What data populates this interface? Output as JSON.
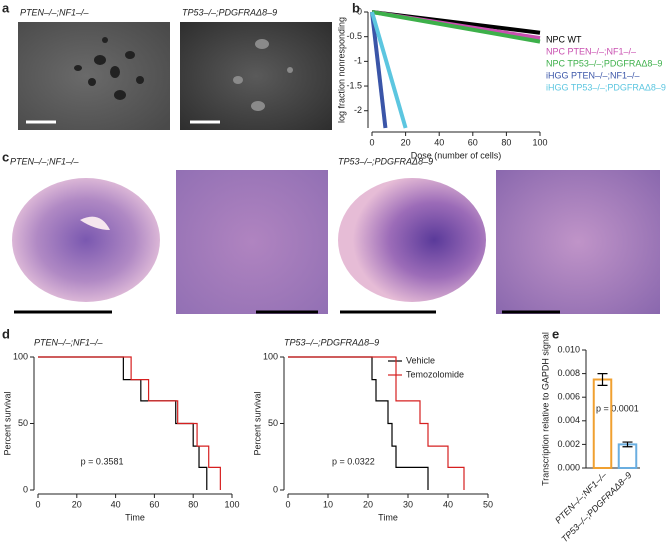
{
  "panel_labels": [
    "a",
    "b",
    "c",
    "d",
    "e"
  ],
  "panel_a": {
    "labels": [
      "PTEN–/–;NF1–/–",
      "TP53–/–;PDGFRAΔ8–9"
    ]
  },
  "panel_c": {
    "labels": [
      "PTEN–/–;NF1–/–",
      "TP53–/–;PDGFRAΔ8–9"
    ]
  },
  "chart_data": [
    {
      "type": "line",
      "xlabel": "Dose (number of cells)",
      "ylabel": "log fraction nonresponding",
      "xlim": [
        0,
        100
      ],
      "ylim": [
        -2.35,
        0
      ],
      "xticks": [
        0,
        20,
        40,
        60,
        80,
        100
      ],
      "yticks": [
        0,
        -0.5,
        -1,
        -1.5,
        -2
      ],
      "series": [
        {
          "name": "NPC WT",
          "color": "#000000",
          "x": [
            0,
            100
          ],
          "values": [
            0,
            -0.42
          ]
        },
        {
          "name": "NPC PTEN–/–;NF1–/–",
          "color": "#c94fb0",
          "x": [
            0,
            100
          ],
          "values": [
            0,
            -0.53
          ]
        },
        {
          "name": "NPC TP53–/–;PDGFRAΔ8–9",
          "color": "#3db04a",
          "x": [
            0,
            100
          ],
          "values": [
            0,
            -0.6
          ]
        },
        {
          "name": "iHGG PTEN–/–;NF1–/–",
          "color": "#3a55a8",
          "x": [
            0,
            8
          ],
          "values": [
            0,
            -2.35
          ]
        },
        {
          "name": "iHGG TP53–/–;PDGFRAΔ8–9",
          "color": "#5cc6e0",
          "x": [
            0,
            20
          ],
          "values": [
            0,
            -2.35
          ]
        }
      ]
    },
    {
      "type": "step",
      "title": "PTEN–/–;NF1–/–",
      "xlabel": "Time",
      "ylabel": "Percent survival",
      "annotation": "p = 0.3581",
      "xlim": [
        0,
        100
      ],
      "ylim": [
        0,
        100
      ],
      "xticks": [
        0,
        20,
        40,
        60,
        80,
        100
      ],
      "yticks": [
        0,
        50,
        100
      ],
      "series": [
        {
          "color": "#000000",
          "x": [
            0,
            44,
            53,
            71,
            80,
            83,
            87
          ],
          "values": [
            100,
            83,
            67,
            50,
            33,
            17,
            0
          ]
        },
        {
          "color": "#d62020",
          "x": [
            0,
            48,
            57,
            72,
            82,
            88,
            94
          ],
          "values": [
            100,
            83,
            67,
            50,
            33,
            17,
            0
          ]
        }
      ]
    },
    {
      "type": "step",
      "title": "TP53–/–;PDGFRAΔ8–9",
      "xlabel": "Time",
      "ylabel": "Percent survival",
      "annotation": "p = 0.0322",
      "xlim": [
        0,
        50
      ],
      "ylim": [
        0,
        100
      ],
      "xticks": [
        0,
        10,
        20,
        30,
        40,
        50
      ],
      "yticks": [
        0,
        50,
        100
      ],
      "series": [
        {
          "name": "Vehicle",
          "color": "#000000",
          "x": [
            0,
            21,
            22,
            25,
            26,
            27,
            35
          ],
          "values": [
            100,
            83,
            67,
            50,
            33,
            17,
            0
          ]
        },
        {
          "name": "Temozolomide",
          "color": "#d62020",
          "x": [
            0,
            27,
            33,
            35,
            40,
            44
          ],
          "values": [
            100,
            67,
            50,
            33,
            17,
            0
          ]
        }
      ]
    },
    {
      "type": "bar",
      "ylabel": "Transcription relative to GAPDH signal",
      "annotation": "p = 0.0001",
      "categories": [
        "PTEN–/–;NF1–/–",
        "TP53–/–;PDGFRAΔ8–9"
      ],
      "values": [
        0.0075,
        0.002
      ],
      "errors": [
        0.0005,
        0.0002
      ],
      "colors": [
        "#f0a030",
        "#6aaee0"
      ],
      "ylim": [
        0,
        0.01
      ],
      "yticks": [
        {
          "value": 0,
          "label": "0.000"
        },
        {
          "value": 0.002,
          "label": "0.002"
        },
        {
          "value": 0.004,
          "label": "0.004"
        },
        {
          "value": 0.006,
          "label": "0.006"
        },
        {
          "value": 0.008,
          "label": "0.008"
        },
        {
          "value": 0.01,
          "label": "0.010"
        }
      ]
    }
  ]
}
